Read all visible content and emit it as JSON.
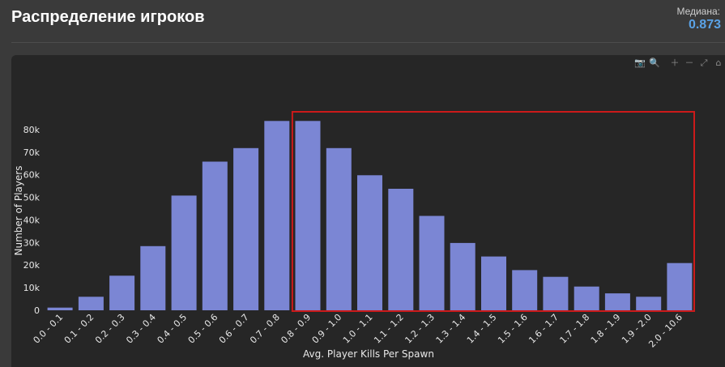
{
  "header": {
    "title": "Распределение игроков",
    "median_label": "Медиана:",
    "median_value": "0.873"
  },
  "toolbar": {
    "camera": "📷",
    "zoom": "🔍",
    "zoom_in": "＋",
    "zoom_out": "－",
    "autoscale": "⤢",
    "reset": "⌂"
  },
  "colors": {
    "bar": "#7b86d4",
    "highlight": "#cc1a1a",
    "background": "#262626"
  },
  "chart_data": {
    "type": "bar",
    "xlabel": "Avg. Player Kills Per Spawn",
    "ylabel": "Number of Players",
    "ylim": [
      0,
      85000
    ],
    "yticks": [
      0,
      10000,
      20000,
      30000,
      40000,
      50000,
      60000,
      70000,
      80000
    ],
    "ytick_labels": [
      "0",
      "10k",
      "20k",
      "30k",
      "40k",
      "50k",
      "60k",
      "70k",
      "80k"
    ],
    "categories": [
      "0.0 - 0.1",
      "0.1 - 0.2",
      "0.2 - 0.3",
      "0.3 - 0.4",
      "0.4 - 0.5",
      "0.5 - 0.6",
      "0.6 - 0.7",
      "0.7 - 0.8",
      "0.8 - 0.9",
      "0.9 - 1.0",
      "1.0 - 1.1",
      "1.1 - 1.2",
      "1.2 - 1.3",
      "1.3 - 1.4",
      "1.4 - 1.5",
      "1.5 - 1.6",
      "1.6 - 1.7",
      "1.7 - 1.8",
      "1.8 - 1.9",
      "1.9 - 2.0",
      "2.0 - 10.6"
    ],
    "values": [
      1200,
      6000,
      15300,
      28400,
      50800,
      65800,
      71800,
      83800,
      83800,
      71800,
      59800,
      53800,
      41800,
      29800,
      23800,
      17800,
      14800,
      10500,
      7500,
      6000,
      20900
    ],
    "highlight_range": [
      "0.8 - 0.9",
      "2.0 - 10.6"
    ],
    "grid": false,
    "legend": "none"
  }
}
